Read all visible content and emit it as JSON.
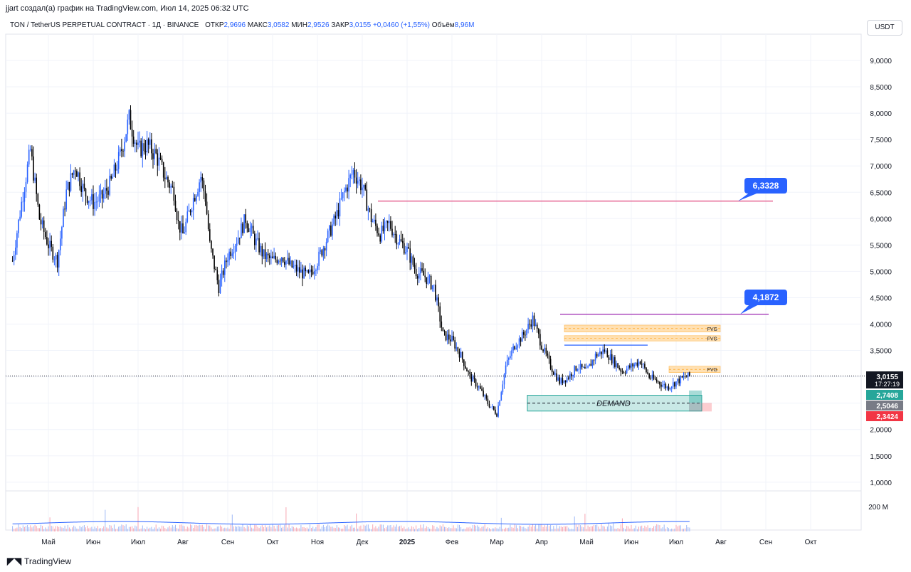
{
  "header": {
    "author_line": "jjart создал(а) график на TradingView.com, Июл 14, 2025 06:32 UTC"
  },
  "legend": {
    "symbol": "TON / TetherUS PERPETUAL CONTRACT · 1Д · BINANCE",
    "open_label": "ОТКР",
    "open": "2,9696",
    "high_label": "МАКС",
    "high": "3,0582",
    "low_label": "МИН",
    "low": "2,9526",
    "close_label": "ЗАКР",
    "close": "3,0155",
    "change": "+0,0460 (+1,55%)",
    "volume_label": "Объём",
    "volume": "8,96M"
  },
  "currency_button": "USDT",
  "footer": {
    "brand": "TradingView"
  },
  "colors": {
    "up": "#2962ff",
    "down": "#000000",
    "price_line": "#131722",
    "target_high": "#e0457b",
    "target_mid": "#9c27b0",
    "callout": "#2962ff",
    "demand_fill": "#b2dfdb",
    "demand_border": "#26a69a",
    "fvg_fill": "#ffe0b2",
    "tag_green": "#26a69a",
    "tag_gray": "#787b86",
    "tag_red": "#f23645"
  },
  "chart_data": {
    "type": "candlestick",
    "y_axis": {
      "ticks": [
        "9,0000",
        "8,5000",
        "8,0000",
        "7,5000",
        "7,0000",
        "6,5000",
        "6,0000",
        "5,5000",
        "5,0000",
        "4,5000",
        "4,0000",
        "3,5000",
        "3,0000",
        "2,5000",
        "2,0000",
        "1,5000",
        "1,0000"
      ],
      "tick_values": [
        9,
        8.5,
        8,
        7.5,
        7,
        6.5,
        6,
        5.5,
        5,
        4.5,
        4,
        3.5,
        3,
        2.5,
        2,
        1.5,
        1
      ],
      "range": [
        1,
        9
      ]
    },
    "x_axis": {
      "labels": [
        "Май",
        "Июн",
        "Июл",
        "Авг",
        "Сен",
        "Окт",
        "Ноя",
        "Дек",
        "2025",
        "Фев",
        "Мар",
        "Апр",
        "Май",
        "Июн",
        "Июл",
        "Авг",
        "Сен",
        "Окт"
      ],
      "label_index": [
        0,
        1,
        2,
        3,
        4,
        5,
        6,
        7,
        8,
        9,
        10,
        11,
        12,
        13,
        14,
        15,
        16,
        17
      ]
    },
    "price_path": [
      [
        -0.8,
        5.2
      ],
      [
        -0.6,
        6.3
      ],
      [
        -0.4,
        7.3
      ],
      [
        -0.2,
        6.0
      ],
      [
        0,
        5.5
      ],
      [
        0.2,
        5.2
      ],
      [
        0.4,
        6.5
      ],
      [
        0.6,
        7.0
      ],
      [
        0.8,
        6.5
      ],
      [
        1.0,
        6.3
      ],
      [
        1.2,
        6.4
      ],
      [
        1.4,
        6.7
      ],
      [
        1.6,
        7.2
      ],
      [
        1.8,
        7.9
      ],
      [
        2.0,
        7.3
      ],
      [
        2.2,
        7.4
      ],
      [
        2.4,
        7.2
      ],
      [
        2.6,
        6.8
      ],
      [
        2.8,
        6.5
      ],
      [
        2.9,
        5.9
      ],
      [
        3.0,
        5.7
      ],
      [
        3.2,
        6.3
      ],
      [
        3.4,
        6.8
      ],
      [
        3.5,
        6.4
      ],
      [
        3.6,
        5.5
      ],
      [
        3.8,
        4.7
      ],
      [
        4.0,
        5.3
      ],
      [
        4.2,
        5.6
      ],
      [
        4.4,
        6.0
      ],
      [
        4.6,
        5.6
      ],
      [
        4.8,
        5.3
      ],
      [
        5.0,
        5.2
      ],
      [
        5.2,
        5.3
      ],
      [
        5.4,
        5.1
      ],
      [
        5.6,
        5.0
      ],
      [
        5.8,
        4.9
      ],
      [
        6.0,
        5.2
      ],
      [
        6.2,
        5.6
      ],
      [
        6.4,
        6.0
      ],
      [
        6.6,
        6.5
      ],
      [
        6.8,
        6.9
      ],
      [
        7.0,
        6.6
      ],
      [
        7.2,
        6.0
      ],
      [
        7.4,
        5.7
      ],
      [
        7.6,
        5.9
      ],
      [
        7.8,
        5.6
      ],
      [
        8.0,
        5.4
      ],
      [
        8.2,
        5.0
      ],
      [
        8.4,
        4.9
      ],
      [
        8.6,
        4.7
      ],
      [
        8.8,
        3.8
      ],
      [
        9.0,
        3.7
      ],
      [
        9.2,
        3.4
      ],
      [
        9.4,
        3.0
      ],
      [
        9.6,
        2.8
      ],
      [
        9.8,
        2.5
      ],
      [
        10.0,
        2.3
      ],
      [
        10.2,
        3.2
      ],
      [
        10.4,
        3.6
      ],
      [
        10.6,
        3.8
      ],
      [
        10.8,
        4.1
      ],
      [
        11.0,
        3.6
      ],
      [
        11.2,
        3.2
      ],
      [
        11.4,
        2.9
      ],
      [
        11.6,
        3.0
      ],
      [
        11.8,
        3.2
      ],
      [
        12.0,
        3.1
      ],
      [
        12.2,
        3.4
      ],
      [
        12.4,
        3.5
      ],
      [
        12.6,
        3.3
      ],
      [
        12.8,
        3.1
      ],
      [
        13.0,
        3.2
      ],
      [
        13.2,
        3.3
      ],
      [
        13.4,
        3.0
      ],
      [
        13.6,
        2.9
      ],
      [
        13.8,
        2.8
      ],
      [
        14.0,
        2.9
      ],
      [
        14.2,
        3.0
      ],
      [
        14.3,
        3.0155
      ]
    ],
    "last_price": 3.0155,
    "levels": [
      {
        "label": "6,3328",
        "value": 6.3328,
        "color": "#e0457b"
      },
      {
        "label": "4,1872",
        "value": 4.1872,
        "color": "#9c27b0"
      }
    ],
    "price_tags": [
      {
        "label": "3,0155",
        "sub": "17:27:19",
        "value": 3.0155,
        "color": "#131722"
      },
      {
        "label": "2,7408",
        "value": 2.7408,
        "color": "#26a69a"
      },
      {
        "label": "2,5046",
        "value": 2.5046,
        "color": "#787b86"
      },
      {
        "label": "2,3424",
        "value": 2.3424,
        "color": "#f23645"
      }
    ],
    "zones": [
      {
        "label": "DEMAND",
        "from": 2.35,
        "to": 2.65
      },
      {
        "label": "FVG",
        "from": 3.85,
        "to": 3.98
      },
      {
        "label": "FVG",
        "from": 3.68,
        "to": 3.78
      },
      {
        "label": "FVG",
        "from": 3.08,
        "to": 3.2
      }
    ],
    "volume_axis_label": "200 M"
  }
}
